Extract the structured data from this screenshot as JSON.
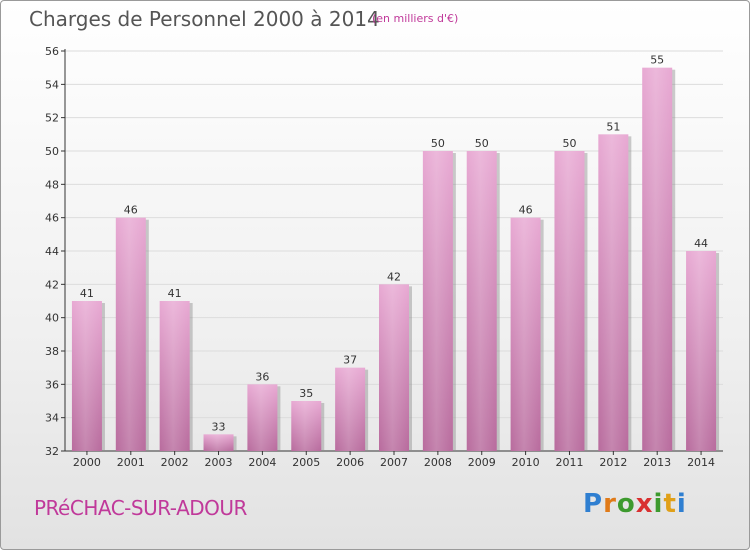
{
  "header": {
    "title": "Charges de Personnel 2000 à 2014",
    "subtitle": "(en milliers d'€)"
  },
  "footer": {
    "commune": "PRéCHAC-SUR-ADOUR",
    "logo": {
      "letters": [
        "P",
        "r",
        "o",
        "x",
        "i",
        "t",
        "i"
      ],
      "colors": [
        "#2f7fd1",
        "#e07a18",
        "#3d9a2e",
        "#d93030",
        "#3d9a2e",
        "#e0a018",
        "#2f7fd1"
      ]
    }
  },
  "colors": {
    "bar_top": "#e8a9d3",
    "bar_bottom": "#b86b9d",
    "bar_shadow": "#8e8e8e",
    "grid": "#dcdcdc"
  },
  "chart_data": {
    "type": "bar",
    "categories": [
      "2000",
      "2001",
      "2002",
      "2003",
      "2004",
      "2005",
      "2006",
      "2007",
      "2008",
      "2009",
      "2010",
      "2011",
      "2012",
      "2013",
      "2014"
    ],
    "values": [
      41,
      46,
      41,
      33,
      36,
      35,
      37,
      42,
      50,
      50,
      46,
      50,
      51,
      55,
      44
    ],
    "title": "Charges de Personnel 2000 à 2014",
    "subtitle": "(en milliers d'€)",
    "xlabel": "",
    "ylabel": "",
    "ylim": [
      32,
      56
    ],
    "yticks": [
      32,
      34,
      36,
      38,
      40,
      42,
      44,
      46,
      48,
      50,
      52,
      54,
      56
    ],
    "grid": true,
    "legend": "none"
  }
}
